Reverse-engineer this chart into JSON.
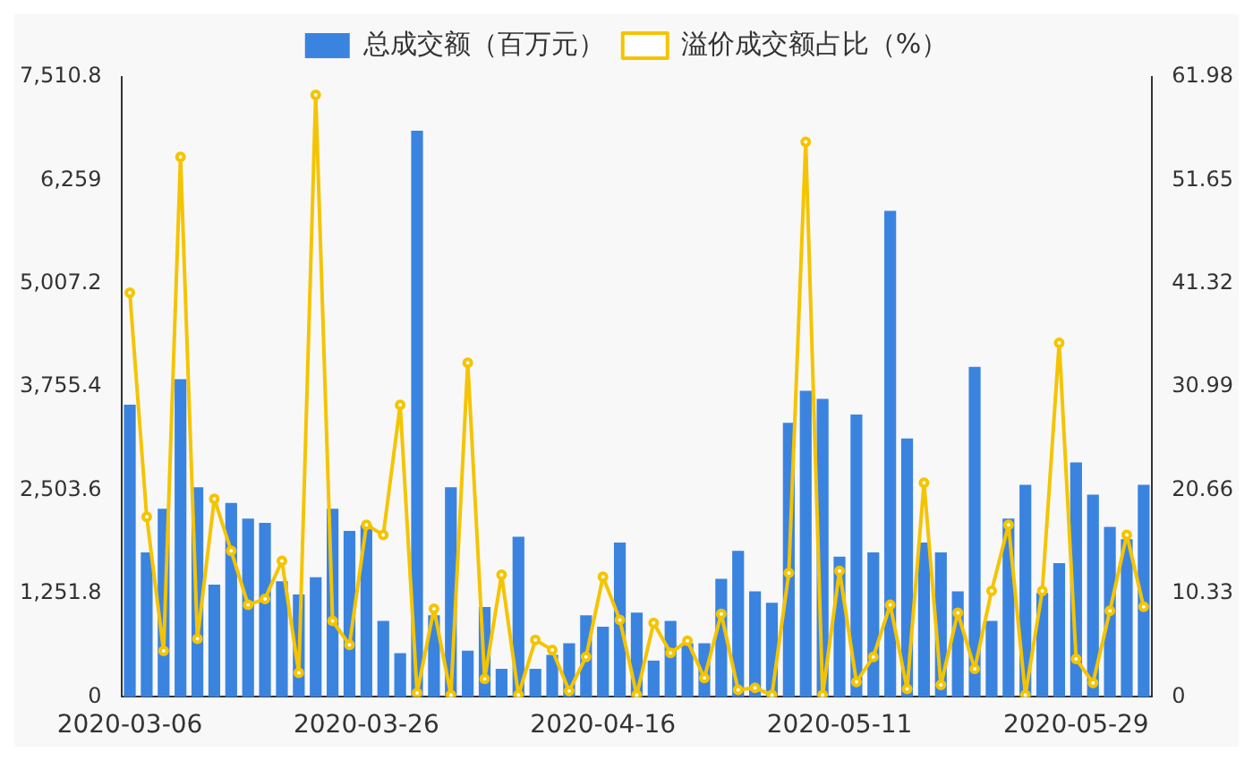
{
  "chart_data": {
    "type": "bar",
    "categories": [
      "2020-03-06",
      null,
      null,
      null,
      null,
      null,
      null,
      null,
      null,
      null,
      null,
      null,
      null,
      null,
      "2020-03-26",
      null,
      null,
      null,
      null,
      null,
      null,
      null,
      null,
      null,
      null,
      null,
      null,
      null,
      "2020-04-16",
      null,
      null,
      null,
      null,
      null,
      null,
      null,
      null,
      null,
      null,
      null,
      null,
      null,
      "2020-05-11",
      null,
      null,
      null,
      null,
      null,
      null,
      null,
      null,
      null,
      null,
      null,
      null,
      null,
      "2020-05-29",
      null,
      null,
      null,
      null
    ],
    "series": [
      {
        "name": "总成交额（百万元）",
        "color": "#3a84e0",
        "values": [
          3540,
          1750,
          2280,
          3850,
          2540,
          1360,
          2350,
          2160,
          2110,
          1400,
          1240,
          1450,
          2280,
          2010,
          2080,
          920,
          530,
          6860,
          990,
          2540,
          560,
          1090,
          340,
          1940,
          340,
          510,
          650,
          990,
          850,
          1870,
          1020,
          440,
          920,
          650,
          650,
          1430,
          1770,
          1280,
          1140,
          3320,
          3710,
          3610,
          1700,
          3420,
          1750,
          5890,
          3130,
          1870,
          1750,
          1280,
          4000,
          920,
          2160,
          2570,
          1260,
          1620,
          2840,
          2450,
          2060,
          1910,
          2570
        ]
      },
      {
        "name": "溢价成交额占比（%）",
        "type": "line",
        "axis": "y2",
        "color": "#f5c400",
        "values": [
          40.4,
          18.0,
          4.6,
          54.0,
          5.8,
          19.8,
          14.6,
          9.2,
          9.8,
          13.6,
          2.4,
          60.2,
          7.6,
          5.2,
          17.2,
          16.2,
          29.2,
          0.4,
          8.8,
          0.2,
          33.4,
          1.8,
          12.2,
          0.2,
          5.7,
          4.7,
          0.6,
          4.0,
          12.0,
          7.7,
          0.2,
          7.4,
          4.4,
          5.6,
          1.9,
          8.3,
          0.7,
          0.9,
          0.2,
          12.4,
          55.5,
          0.2,
          12.6,
          1.5,
          4.0,
          9.2,
          0.8,
          21.4,
          1.2,
          8.4,
          2.8,
          10.6,
          17.2,
          0.2,
          10.6,
          35.4,
          3.8,
          1.4,
          8.6,
          16.2,
          9.0
        ]
      }
    ],
    "ylim": [
      0,
      7510.8
    ],
    "yticks": [
      0,
      {
        "value": 1251.8,
        "label": "1,251.8"
      },
      {
        "value": 2503.6,
        "label": "2,503.6"
      },
      {
        "value": 3755.4,
        "label": "3,755.4"
      },
      {
        "value": 5007.2,
        "label": "5,007.2"
      },
      {
        "value": 6259,
        "label": "6,259"
      },
      {
        "value": 7510.8,
        "label": "7,510.8"
      }
    ],
    "y2lim": [
      0,
      61.98
    ],
    "y2ticks": [
      0,
      10.33,
      20.66,
      30.99,
      41.32,
      51.65,
      61.98
    ],
    "legend": "top",
    "grid": false,
    "marker": "circle"
  }
}
